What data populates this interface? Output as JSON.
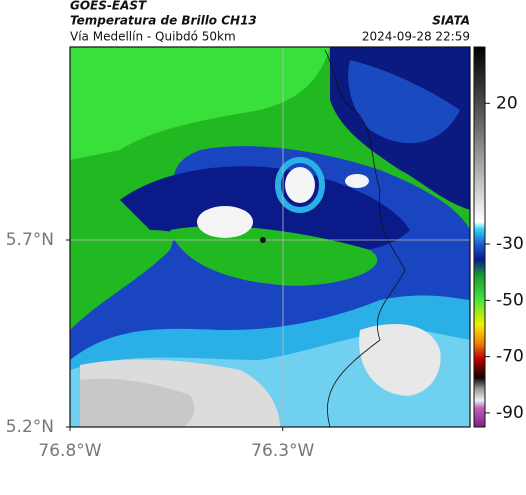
{
  "header": {
    "source": "GOES-EAST",
    "title": "Temperatura de Brillo CH13",
    "agency": "SIATA",
    "subtitle": "Vía Medellín - Quibdó 50km",
    "timestamp": "2024-09-28 22:59"
  },
  "map": {
    "xlim": [
      -76.8,
      -75.86
    ],
    "ylim": [
      5.2,
      6.216
    ],
    "xticks": [
      {
        "value": -76.8,
        "label": "76.8°W"
      },
      {
        "value": -76.3,
        "label": "76.3°W"
      }
    ],
    "yticks": [
      {
        "value": 5.2,
        "label": "5.2°N"
      },
      {
        "value": 5.7,
        "label": "5.7°N"
      }
    ]
  },
  "colorbar": {
    "lim": [
      -95,
      40
    ],
    "ticks": [
      20,
      -30,
      -50,
      -70,
      -90
    ]
  }
}
